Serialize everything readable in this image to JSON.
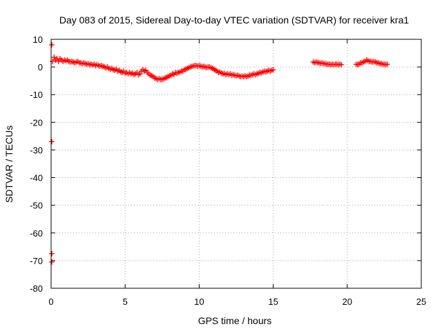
{
  "chart_data": {
    "type": "scatter",
    "title": "Day 083 of 2015, Sidereal Day-to-day VTEC variation (SDTVAR) for receiver kra1",
    "xlabel": "GPS time / hours",
    "ylabel": "SDTVAR / TECUs",
    "xlim": [
      0,
      25
    ],
    "ylim": [
      -80,
      10
    ],
    "xticks": [
      "0",
      "5",
      "10",
      "15",
      "20",
      "25"
    ],
    "yticks": [
      "10",
      "0",
      "-10",
      "-20",
      "-30",
      "-40",
      "-50",
      "-60",
      "-70",
      "-80"
    ],
    "grid": true,
    "marker_color": "#ff0000",
    "series": [
      {
        "name": "kra1 SDTVAR",
        "x": [
          0.1,
          0.2,
          0.3,
          0.4,
          0.5,
          0.6,
          0.7,
          0.8,
          0.9,
          1.0,
          1.1,
          1.2,
          1.3,
          1.4,
          1.5,
          1.6,
          1.7,
          1.8,
          1.9,
          2.0,
          2.1,
          2.2,
          2.3,
          2.4,
          2.5,
          2.6,
          2.7,
          2.8,
          2.9,
          3.0,
          3.1,
          3.2,
          3.3,
          3.4,
          3.5,
          3.6,
          3.7,
          3.8,
          3.9,
          4.0,
          4.1,
          4.2,
          4.3,
          4.4,
          4.5,
          4.6,
          4.7,
          4.8,
          4.9,
          5.0,
          5.1,
          5.2,
          5.3,
          5.4,
          5.5,
          5.6,
          5.7,
          5.8,
          5.9,
          6.0,
          6.1,
          6.2,
          6.3,
          6.4,
          6.5,
          6.6,
          6.7,
          6.8,
          6.9,
          7.0,
          7.1,
          7.2,
          7.3,
          7.4,
          7.5,
          7.6,
          7.7,
          7.8,
          7.9,
          8.0,
          8.1,
          8.2,
          8.3,
          8.4,
          8.5,
          8.6,
          8.7,
          8.8,
          8.9,
          9.0,
          9.1,
          9.2,
          9.3,
          9.4,
          9.5,
          9.6,
          9.7,
          9.8,
          9.9,
          10.0,
          10.1,
          10.2,
          10.3,
          10.4,
          10.5,
          10.6,
          10.7,
          10.8,
          10.9,
          11.0,
          11.1,
          11.2,
          11.3,
          11.4,
          11.5,
          11.6,
          11.7,
          11.8,
          11.9,
          12.0,
          12.1,
          12.2,
          12.3,
          12.4,
          12.5,
          12.6,
          12.7,
          12.8,
          12.9,
          13.0,
          13.1,
          13.2,
          13.3,
          13.4,
          13.5,
          13.6,
          13.7,
          13.8,
          13.9,
          14.0,
          14.1,
          14.2,
          14.3,
          14.4,
          14.5,
          14.6,
          14.7,
          14.8,
          14.9,
          15.0,
          17.7,
          17.8,
          17.9,
          18.0,
          18.1,
          18.2,
          18.3,
          18.4,
          18.5,
          18.6,
          18.7,
          18.8,
          18.9,
          19.0,
          19.1,
          19.2,
          19.3,
          19.4,
          19.5,
          19.6,
          20.6,
          20.7,
          20.8,
          20.9,
          21.0,
          21.1,
          21.2,
          21.3,
          21.4,
          21.5,
          21.6,
          21.7,
          21.8,
          21.9,
          22.0,
          22.1,
          22.2,
          22.3,
          22.4,
          22.5,
          22.6,
          22.7,
          0.05,
          0.05,
          0.05,
          0.05
        ],
        "y": [
          2.0,
          3.5,
          2.5,
          3.0,
          2.0,
          3.0,
          2.5,
          2.0,
          2.5,
          2.2,
          2.5,
          2.0,
          1.8,
          2.0,
          1.8,
          1.5,
          1.8,
          2.0,
          1.5,
          1.5,
          1.2,
          1.5,
          1.2,
          1.0,
          1.2,
          0.8,
          1.0,
          0.7,
          1.0,
          0.5,
          0.8,
          0.5,
          0.3,
          0.5,
          0.2,
          0.0,
          -0.3,
          0.0,
          -0.5,
          -0.8,
          -0.5,
          -1.0,
          -1.2,
          -0.8,
          -1.5,
          -1.2,
          -1.8,
          -2.0,
          -1.5,
          -2.3,
          -2.0,
          -2.5,
          -2.0,
          -2.5,
          -2.2,
          -2.8,
          -2.5,
          -2.0,
          -2.8,
          -2.5,
          -1.5,
          -1.0,
          -1.5,
          -1.2,
          -2.0,
          -2.5,
          -3.0,
          -3.2,
          -3.5,
          -4.0,
          -4.2,
          -4.5,
          -4.2,
          -4.5,
          -4.5,
          -4.3,
          -4.0,
          -3.8,
          -3.5,
          -3.2,
          -3.0,
          -2.5,
          -2.8,
          -2.0,
          -2.2,
          -2.0,
          -1.8,
          -1.5,
          -1.5,
          -1.0,
          -0.8,
          -0.5,
          -0.3,
          0.0,
          0.2,
          0.3,
          0.5,
          0.5,
          0.3,
          0.5,
          0.3,
          0.0,
          0.2,
          0.0,
          -0.2,
          0.0,
          0.0,
          -0.3,
          -0.5,
          -0.8,
          -1.2,
          -1.5,
          -2.0,
          -1.8,
          -2.2,
          -2.5,
          -2.3,
          -2.8,
          -2.5,
          -2.8,
          -2.5,
          -3.0,
          -2.8,
          -3.0,
          -3.2,
          -3.0,
          -3.3,
          -3.5,
          -3.3,
          -3.5,
          -3.2,
          -3.5,
          -3.3,
          -3.0,
          -3.0,
          -2.8,
          -2.5,
          -2.8,
          -2.5,
          -2.3,
          -2.0,
          -2.2,
          -1.8,
          -1.5,
          -1.8,
          -1.5,
          -1.2,
          -1.5,
          -1.2,
          -1.0,
          1.8,
          1.5,
          1.8,
          1.6,
          1.5,
          1.3,
          1.5,
          1.2,
          1.2,
          1.0,
          1.0,
          1.0,
          0.8,
          1.0,
          0.8,
          1.0,
          1.0,
          0.8,
          1.0,
          0.8,
          1.0,
          0.8,
          1.0,
          1.5,
          1.5,
          1.8,
          2.0,
          2.5,
          2.2,
          2.0,
          2.0,
          1.8,
          2.0,
          1.8,
          1.5,
          1.5,
          1.2,
          1.2,
          1.0,
          1.0,
          0.8,
          1.0,
          8.0,
          -27.0,
          -67.5,
          -70.5
        ]
      }
    ]
  }
}
